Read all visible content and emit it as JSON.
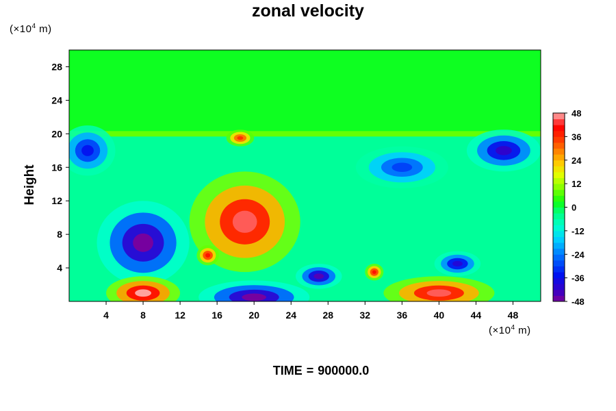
{
  "chart_data": {
    "type": "heatmap",
    "title": "zonal velocity",
    "ylabel": "Height",
    "xlabel": "",
    "x_unit": {
      "prefix": "(×10",
      "exp": "4",
      "suffix": " m)"
    },
    "y_unit": {
      "prefix": "(×10",
      "exp": "4",
      "suffix": " m)"
    },
    "xlim": [
      0,
      51
    ],
    "ylim": [
      0,
      30
    ],
    "x_ticks": [
      4,
      8,
      12,
      16,
      20,
      24,
      28,
      32,
      36,
      40,
      44,
      48
    ],
    "y_ticks": [
      4,
      8,
      12,
      16,
      20,
      24,
      28
    ],
    "colorbar": {
      "min": -48,
      "max": 48,
      "ticks": [
        48,
        36,
        24,
        12,
        0,
        -12,
        -24,
        -36,
        -48
      ]
    },
    "field_features": [
      {
        "kind": "band",
        "y_from": 20,
        "y_to": 30,
        "value": 2
      },
      {
        "kind": "blob",
        "x": 8,
        "y": 7,
        "value": -48
      },
      {
        "kind": "blob",
        "x": 19,
        "y": 9.5,
        "value": 45
      },
      {
        "kind": "blob",
        "x": 8,
        "y": 1,
        "value": 48
      },
      {
        "kind": "blob",
        "x": 20,
        "y": 0.5,
        "value": -48
      },
      {
        "kind": "blob",
        "x": 40,
        "y": 1,
        "value": 45
      },
      {
        "kind": "blob",
        "x": 47,
        "y": 18,
        "value": -42
      },
      {
        "kind": "blob",
        "x": 36,
        "y": 16,
        "value": -30
      },
      {
        "kind": "blob",
        "x": 42,
        "y": 4.5,
        "value": -40
      },
      {
        "kind": "blob",
        "x": 2,
        "y": 18,
        "value": -35
      },
      {
        "kind": "blob",
        "x": 33,
        "y": 3.5,
        "value": 40
      },
      {
        "kind": "blob",
        "x": 15,
        "y": 5.5,
        "value": 40
      },
      {
        "kind": "blob",
        "x": 27,
        "y": 3,
        "value": -45
      },
      {
        "kind": "blob",
        "x": 18.5,
        "y": 19.5,
        "value": 36
      }
    ]
  },
  "footer": {
    "label": "TIME",
    "sep": "=",
    "value": "900000.0"
  }
}
